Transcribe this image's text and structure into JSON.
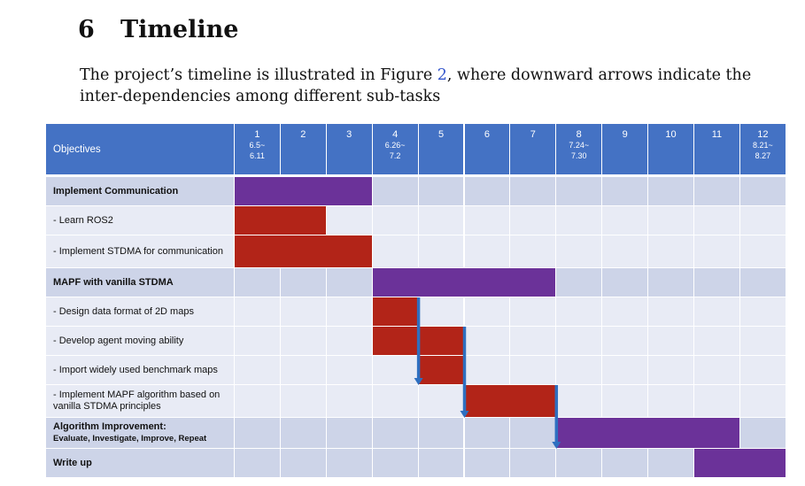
{
  "section": {
    "number": "6",
    "title": "Timeline"
  },
  "intro": {
    "before": "The project’s timeline is illustrated in Figure ",
    "figure_ref": "2",
    "after": ", where downward arrows indicate the inter-dependencies among different sub-tasks"
  },
  "timeline": {
    "objectives_header": "Objectives",
    "weeks": [
      {
        "num": "1",
        "dates": [
          "6.5~",
          "6.11"
        ]
      },
      {
        "num": "2",
        "dates": []
      },
      {
        "num": "3",
        "dates": []
      },
      {
        "num": "4",
        "dates": [
          "6.26~",
          "7.2"
        ]
      },
      {
        "num": "5",
        "dates": []
      },
      {
        "num": "6",
        "dates": []
      },
      {
        "num": "7",
        "dates": []
      },
      {
        "num": "8",
        "dates": [
          "7.24~",
          "7.30"
        ]
      },
      {
        "num": "9",
        "dates": []
      },
      {
        "num": "10",
        "dates": []
      },
      {
        "num": "11",
        "dates": []
      },
      {
        "num": "12",
        "dates": [
          "8.21~",
          "8.27"
        ]
      }
    ],
    "tasks": [
      {
        "label": "Implement Communication",
        "sublabel": "",
        "major": true,
        "bars": [
          {
            "start_week": 1,
            "end_week": 3,
            "color": "#6b3299"
          }
        ]
      },
      {
        "label": "- Learn ROS2",
        "sublabel": "",
        "major": false,
        "bars": [
          {
            "start_week": 1,
            "end_week": 2,
            "color": "#b22418"
          }
        ]
      },
      {
        "label": "- Implement STDMA for communication",
        "sublabel": "",
        "major": false,
        "bars": [
          {
            "start_week": 1,
            "end_week": 3,
            "color": "#b22418"
          }
        ]
      },
      {
        "label": "MAPF with vanilla STDMA",
        "sublabel": "",
        "major": true,
        "bars": [
          {
            "start_week": 4,
            "end_week": 7,
            "color": "#6b3299"
          }
        ]
      },
      {
        "label": "- Design data format of 2D maps",
        "sublabel": "",
        "major": false,
        "bars": [
          {
            "start_week": 4,
            "end_week": 4,
            "color": "#b22418"
          }
        ]
      },
      {
        "label": "- Develop agent moving ability",
        "sublabel": "",
        "major": false,
        "bars": [
          {
            "start_week": 4,
            "end_week": 5,
            "color": "#b22418"
          }
        ]
      },
      {
        "label": "- Import widely used benchmark maps",
        "sublabel": "",
        "major": false,
        "bars": [
          {
            "start_week": 5,
            "end_week": 5,
            "color": "#b22418"
          }
        ]
      },
      {
        "label": "- Implement MAPF algorithm based on vanilla STDMA principles",
        "sublabel": "",
        "major": false,
        "bars": [
          {
            "start_week": 6,
            "end_week": 7,
            "color": "#b22418"
          }
        ]
      },
      {
        "label": "Algorithm Improvement:",
        "sublabel": "Evaluate, Investigate, Improve, Repeat",
        "major": true,
        "bars": [
          {
            "start_week": 8,
            "end_week": 11,
            "color": "#6b3299"
          }
        ]
      },
      {
        "label": "Write up",
        "sublabel": "",
        "major": true,
        "bars": [
          {
            "start_week": 11,
            "end_week": 12,
            "color": "#6b3299"
          }
        ]
      }
    ],
    "dependencies": [
      {
        "from_task": 4,
        "to_task": 6,
        "week_boundary": 4
      },
      {
        "from_task": 5,
        "to_task": 7,
        "week_boundary": 5
      },
      {
        "from_task": 7,
        "to_task": 8,
        "week_boundary": 7
      }
    ],
    "arrow_color": "#2e6fc0"
  }
}
